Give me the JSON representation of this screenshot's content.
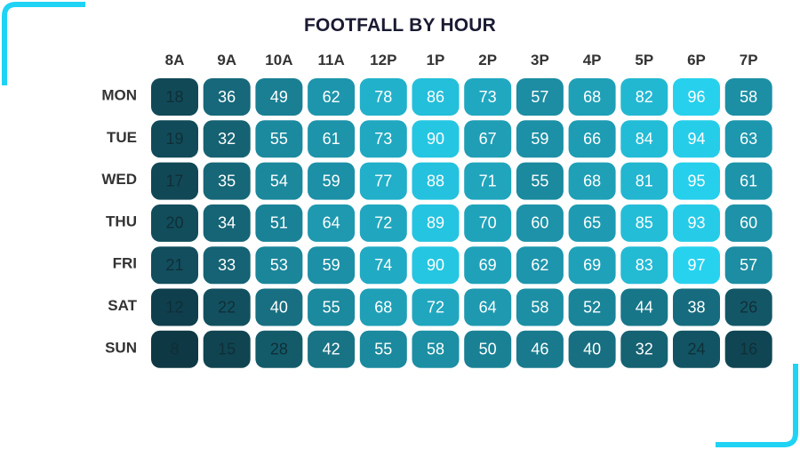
{
  "colors": {
    "accent": "#1fd3f5",
    "title": "#1a1a33",
    "label": "#333333",
    "scale_low": "#0e3844",
    "scale_high": "#27d2ef",
    "text_dark": "#0f2f38",
    "text_light": "#ffffff"
  },
  "chart_data": {
    "type": "heatmap",
    "title": "FOOTFALL BY HOUR",
    "columns": [
      "8A",
      "9A",
      "10A",
      "11A",
      "12P",
      "1P",
      "2P",
      "3P",
      "4P",
      "5P",
      "6P",
      "7P"
    ],
    "rows": [
      "MON",
      "TUE",
      "WED",
      "THU",
      "FRI",
      "SAT",
      "SUN"
    ],
    "values": [
      [
        18,
        36,
        49,
        62,
        78,
        86,
        73,
        57,
        68,
        82,
        96,
        58
      ],
      [
        19,
        32,
        55,
        61,
        73,
        90,
        67,
        59,
        66,
        84,
        94,
        63
      ],
      [
        17,
        35,
        54,
        59,
        77,
        88,
        71,
        55,
        68,
        81,
        95,
        61
      ],
      [
        20,
        34,
        51,
        64,
        72,
        89,
        70,
        60,
        65,
        85,
        93,
        60
      ],
      [
        21,
        33,
        53,
        59,
        74,
        90,
        69,
        62,
        69,
        83,
        97,
        57
      ],
      [
        12,
        22,
        40,
        55,
        68,
        72,
        64,
        58,
        52,
        44,
        38,
        26
      ],
      [
        8,
        15,
        28,
        42,
        55,
        58,
        50,
        46,
        40,
        32,
        24,
        16
      ]
    ],
    "value_range": [
      8,
      97
    ],
    "legend": "none",
    "grid": false
  }
}
